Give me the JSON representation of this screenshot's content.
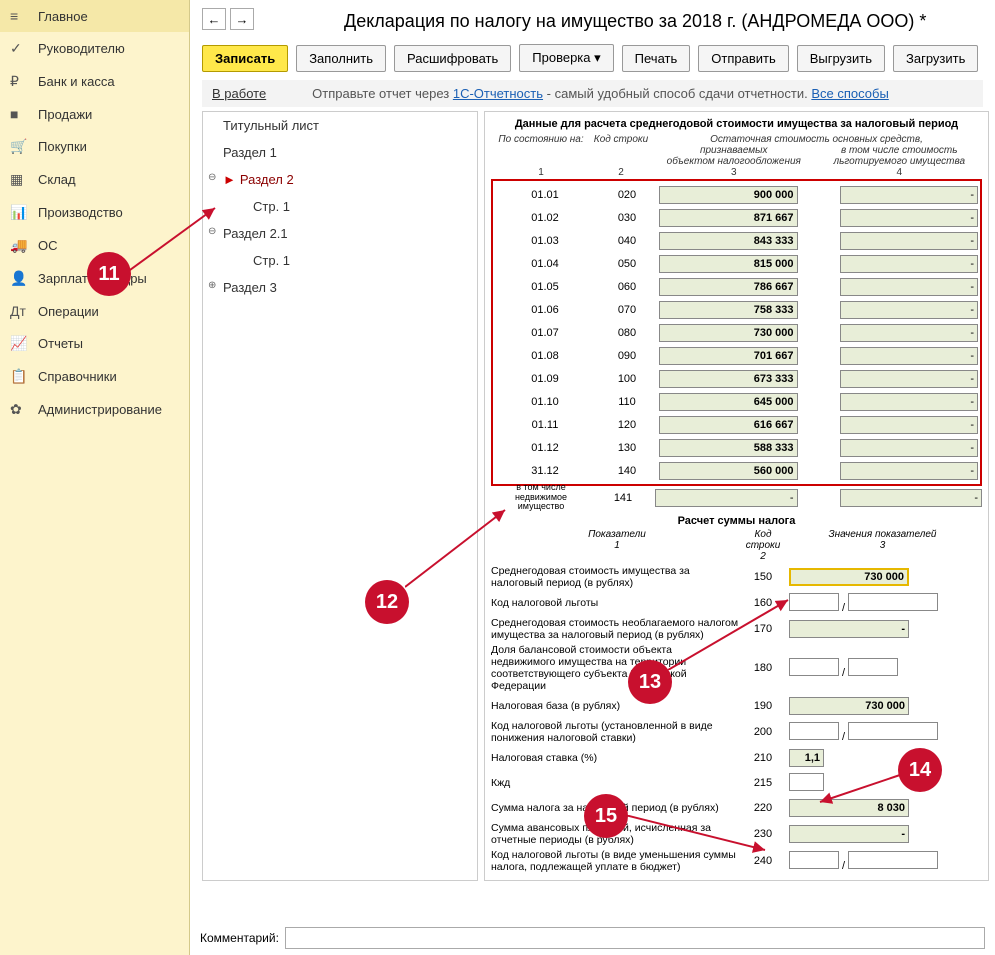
{
  "sidebar": {
    "items": [
      {
        "icon": "≡",
        "label": "Главное"
      },
      {
        "icon": "✓",
        "label": "Руководителю"
      },
      {
        "icon": "₽",
        "label": "Банк и касса"
      },
      {
        "icon": "■",
        "label": "Продажи"
      },
      {
        "icon": "🛒",
        "label": "Покупки"
      },
      {
        "icon": "▦",
        "label": "Склад"
      },
      {
        "icon": "📊",
        "label": "Производство"
      },
      {
        "icon": "🚚",
        "label": "ОС"
      },
      {
        "icon": "👤",
        "label": "Зарплата и кадры"
      },
      {
        "icon": "Дт",
        "label": "Операции"
      },
      {
        "icon": "📈",
        "label": "Отчеты"
      },
      {
        "icon": "📋",
        "label": "Справочники"
      },
      {
        "icon": "✿",
        "label": "Администрирование"
      }
    ]
  },
  "title": "Декларация по налогу на имущество за 2018 г. (АНДРОМЕДА ООО) *",
  "toolbar": {
    "save": "Записать",
    "fill": "Заполнить",
    "decode": "Расшифровать",
    "check": "Проверка",
    "print": "Печать",
    "send": "Отправить",
    "export": "Выгрузить",
    "import": "Загрузить"
  },
  "status": {
    "work": "В работе",
    "text": "Отправьте отчет через ",
    "link1": "1С-Отчетность",
    "text2": " - самый удобный способ сдачи отчетности. ",
    "link2": "Все способы"
  },
  "tree": [
    {
      "label": "Титульный лист",
      "lvl": 0
    },
    {
      "label": "Раздел 1",
      "lvl": 1
    },
    {
      "label": "Раздел 2",
      "lvl": 1,
      "active": true,
      "exp": "⊖"
    },
    {
      "label": "Стр. 1",
      "lvl": 2
    },
    {
      "label": "Раздел 2.1",
      "lvl": 1,
      "exp": "⊖"
    },
    {
      "label": "Стр. 1",
      "lvl": 2
    },
    {
      "label": "Раздел 3",
      "lvl": 1,
      "exp": "⊕"
    }
  ],
  "data_title": "Данные для расчета среднегодовой стоимости имущества за налоговый период",
  "hdr": {
    "h1": "По состоянию на:",
    "h2": "Код строки",
    "h3": "Остаточная стоимость основных средств,",
    "h3a": "признаваемых",
    "h3b": "объектом налогообложения",
    "h4": "в том числе стоимость",
    "h4b": "льготируемого имущества",
    "n1": "1",
    "n2": "2",
    "n3": "3",
    "n4": "4"
  },
  "rows": [
    {
      "d": "01.01",
      "c": "020",
      "v": "900 000"
    },
    {
      "d": "01.02",
      "c": "030",
      "v": "871 667"
    },
    {
      "d": "01.03",
      "c": "040",
      "v": "843 333"
    },
    {
      "d": "01.04",
      "c": "050",
      "v": "815 000"
    },
    {
      "d": "01.05",
      "c": "060",
      "v": "786 667"
    },
    {
      "d": "01.06",
      "c": "070",
      "v": "758 333"
    },
    {
      "d": "01.07",
      "c": "080",
      "v": "730 000"
    },
    {
      "d": "01.08",
      "c": "090",
      "v": "701 667"
    },
    {
      "d": "01.09",
      "c": "100",
      "v": "673 333"
    },
    {
      "d": "01.10",
      "c": "110",
      "v": "645 000"
    },
    {
      "d": "01.11",
      "c": "120",
      "v": "616 667"
    },
    {
      "d": "01.12",
      "c": "130",
      "v": "588 333"
    },
    {
      "d": "31.12",
      "c": "140",
      "v": "560 000"
    }
  ],
  "extra_row": {
    "d": "в том числе недвижимое имущество",
    "c": "141"
  },
  "calc_title": "Расчет суммы налога",
  "calc_hdr": {
    "h1": "Показатели",
    "n1": "1",
    "h2": "Код строки",
    "n2": "2",
    "h3": "Значения показателей",
    "n3": "3"
  },
  "calc": [
    {
      "l": "Среднегодовая стоимость имущества за налоговый период (в рублях)",
      "c": "150",
      "v": "730 000",
      "hl": true
    },
    {
      "l": "Код налоговой льготы",
      "c": "160",
      "type": "split"
    },
    {
      "l": "Среднегодовая стоимость необлагаемого налогом имущества за налоговый период (в рублях)",
      "c": "170",
      "v": "-"
    },
    {
      "l": "Доля балансовой стоимости объекта недвижимого имущества на территории соответствующего субъекта Российской Федерации",
      "c": "180",
      "type": "frac"
    },
    {
      "l": "Налоговая база (в рублях)",
      "c": "190",
      "v": "730 000"
    },
    {
      "l": "Код налоговой льготы (установленной в виде понижения налоговой ставки)",
      "c": "200",
      "type": "split"
    },
    {
      "l": "Налоговая ставка (%)",
      "c": "210",
      "v": "1,1",
      "small": true
    },
    {
      "l": "Кжд",
      "c": "215",
      "type": "small_empty"
    },
    {
      "l": "Сумма налога за налоговый период (в рублях)",
      "c": "220",
      "v": "8 030"
    },
    {
      "l": "Сумма авансовых платежей, исчисленная за отчетные периоды (в рублях)",
      "c": "230",
      "v": "-"
    },
    {
      "l": "Код налоговой льготы (в виде уменьшения суммы налога, подлежащей уплате в бюджет)",
      "c": "240",
      "type": "split"
    }
  ],
  "comment_label": "Комментарий:",
  "bubbles": {
    "11": "11",
    "12": "12",
    "13": "13",
    "14": "14",
    "15": "15"
  }
}
